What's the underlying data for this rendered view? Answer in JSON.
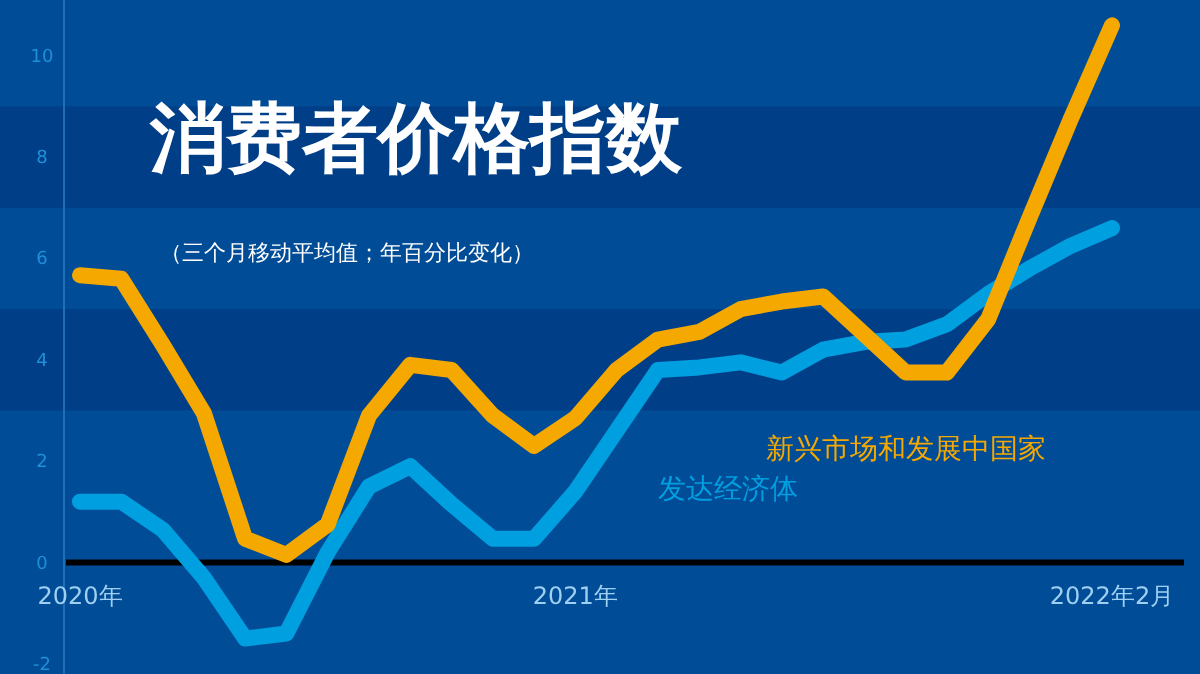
{
  "chart_data": {
    "type": "line",
    "title": "消费者价格指数",
    "subtitle": "（三个月移动平均值；年百分比变化）",
    "categories": [
      "2020年",
      null,
      null,
      null,
      null,
      null,
      null,
      null,
      null,
      null,
      null,
      null,
      "2021年",
      null,
      null,
      null,
      null,
      null,
      null,
      null,
      null,
      null,
      null,
      null,
      null,
      "2022年2月"
    ],
    "series": [
      {
        "name": "发达经济体",
        "color": "#009fe0",
        "values": [
          1.2,
          1.2,
          0.65,
          -0.3,
          -1.5,
          -1.4,
          0.2,
          1.5,
          1.9,
          1.15,
          0.47,
          0.47,
          1.4,
          2.6,
          3.8,
          3.85,
          3.95,
          3.75,
          4.2,
          4.35,
          4.4,
          4.7,
          5.3,
          5.8,
          6.25,
          6.6
        ]
      },
      {
        "name": "新兴市场和发展中国家",
        "color": "#f5a800",
        "values": [
          5.67,
          5.6,
          4.3,
          2.95,
          0.47,
          0.15,
          0.75,
          2.9,
          3.9,
          3.8,
          2.9,
          2.3,
          2.85,
          3.8,
          4.4,
          4.55,
          5.0,
          5.15,
          5.25,
          4.5,
          3.75,
          3.75,
          4.8,
          6.8,
          8.75,
          10.6
        ]
      }
    ],
    "ylim": [
      -2.2,
      11.1
    ],
    "yticks": [
      -2,
      0,
      2,
      4,
      6,
      8,
      10
    ],
    "grid": false,
    "marker": "none",
    "line_style": "solid",
    "bands": [
      {
        "axis": "y",
        "from": 3,
        "to": 5,
        "color": "#003f87"
      },
      {
        "axis": "y",
        "from": 7,
        "to": 9,
        "color": "#003f87"
      }
    ]
  }
}
